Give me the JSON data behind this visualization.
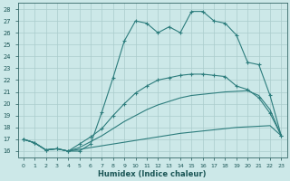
{
  "xlabel": "Humidex (Indice chaleur)",
  "bg_color": "#cce8e8",
  "grid_color": "#aacccc",
  "line_color": "#2d7d7d",
  "xlim": [
    -0.5,
    23.5
  ],
  "ylim": [
    15.5,
    28.5
  ],
  "xticks": [
    0,
    1,
    2,
    3,
    4,
    5,
    6,
    7,
    8,
    9,
    10,
    11,
    12,
    13,
    14,
    15,
    16,
    17,
    18,
    19,
    20,
    21,
    22,
    23
  ],
  "yticks": [
    16,
    17,
    18,
    19,
    20,
    21,
    22,
    23,
    24,
    25,
    26,
    27,
    28
  ],
  "line1_x": [
    0,
    1,
    2,
    3,
    4,
    5,
    6,
    7,
    8,
    9,
    10,
    11,
    12,
    13,
    14,
    15,
    16,
    17,
    18,
    19,
    20,
    21,
    22,
    23
  ],
  "line1_y": [
    17.0,
    16.7,
    16.1,
    16.2,
    16.0,
    16.15,
    16.3,
    16.45,
    16.6,
    16.75,
    16.9,
    17.05,
    17.2,
    17.35,
    17.5,
    17.6,
    17.7,
    17.8,
    17.9,
    18.0,
    18.05,
    18.1,
    18.15,
    17.3
  ],
  "line2_x": [
    0,
    1,
    2,
    3,
    4,
    5,
    6,
    7,
    8,
    9,
    10,
    11,
    12,
    13,
    14,
    15,
    16,
    17,
    18,
    19,
    20,
    21,
    22,
    23
  ],
  "line2_y": [
    17.0,
    16.7,
    16.1,
    16.2,
    16.0,
    16.3,
    16.8,
    17.3,
    17.9,
    18.5,
    19.0,
    19.5,
    19.9,
    20.2,
    20.5,
    20.7,
    20.8,
    20.9,
    21.0,
    21.05,
    21.1,
    20.7,
    19.5,
    17.3
  ],
  "line3_x": [
    0,
    1,
    2,
    3,
    4,
    5,
    6,
    7,
    8,
    9,
    10,
    11,
    12,
    13,
    14,
    15,
    16,
    17,
    18,
    19,
    20,
    21,
    22,
    23
  ],
  "line3_y": [
    17.0,
    16.7,
    16.1,
    16.2,
    16.0,
    16.6,
    17.2,
    17.9,
    19.0,
    20.0,
    20.9,
    21.5,
    22.0,
    22.2,
    22.4,
    22.5,
    22.5,
    22.4,
    22.3,
    21.5,
    21.2,
    20.5,
    19.2,
    17.3
  ],
  "line4_x": [
    0,
    1,
    2,
    3,
    4,
    5,
    6,
    7,
    8,
    9,
    10,
    11,
    12,
    13,
    14,
    15,
    16,
    17,
    18,
    19,
    20,
    21,
    22,
    23
  ],
  "line4_y": [
    17.0,
    16.7,
    16.1,
    16.2,
    16.0,
    16.0,
    16.6,
    19.3,
    22.2,
    25.3,
    27.0,
    26.8,
    26.0,
    26.5,
    26.0,
    27.8,
    27.8,
    27.0,
    26.8,
    25.8,
    23.5,
    23.3,
    20.7,
    17.3
  ]
}
